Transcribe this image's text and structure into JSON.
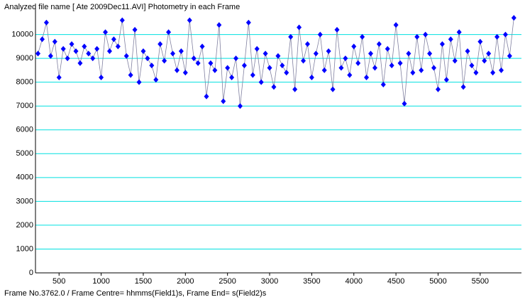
{
  "header": {
    "title": "Analyzed file name [ Ate 2009Dec11.AVI]   Photometry in each Frame"
  },
  "chart_data": {
    "type": "scatter-line",
    "x": [
      250,
      300,
      350,
      400,
      450,
      500,
      550,
      600,
      650,
      700,
      750,
      800,
      850,
      900,
      950,
      1000,
      1050,
      1100,
      1150,
      1200,
      1250,
      1300,
      1350,
      1400,
      1450,
      1500,
      1550,
      1600,
      1650,
      1700,
      1750,
      1800,
      1850,
      1900,
      1950,
      2000,
      2050,
      2100,
      2150,
      2200,
      2250,
      2300,
      2350,
      2400,
      2450,
      2500,
      2550,
      2600,
      2650,
      2700,
      2750,
      2800,
      2850,
      2900,
      2950,
      3000,
      3050,
      3100,
      3150,
      3200,
      3250,
      3300,
      3350,
      3400,
      3450,
      3500,
      3550,
      3600,
      3650,
      3700,
      3750,
      3800,
      3850,
      3900,
      3950,
      4000,
      4050,
      4100,
      4150,
      4200,
      4250,
      4300,
      4350,
      4400,
      4450,
      4500,
      4550,
      4600,
      4650,
      4700,
      4750,
      4800,
      4850,
      4900,
      4950,
      5000,
      5050,
      5100,
      5150,
      5200,
      5250,
      5300,
      5350,
      5400,
      5450,
      5500,
      5550,
      5600,
      5650,
      5700,
      5750,
      5800,
      5850,
      5900
    ],
    "series": [
      {
        "color": "#0000ff",
        "values": [
          9200,
          9800,
          10500,
          9100,
          9700,
          8200,
          9400,
          9000,
          9600,
          9300,
          8800,
          9500,
          9200,
          9000,
          9400,
          8200,
          10100,
          9300,
          9800,
          9500,
          10600,
          9100,
          8300,
          10200,
          8000,
          9300,
          9000,
          8700,
          8100,
          9600,
          8900,
          10100,
          9200,
          8500,
          9300,
          8400,
          10600,
          9000,
          8800,
          9500,
          7400,
          8800,
          8500,
          10400,
          7200,
          8600,
          8200,
          9000,
          7000,
          8700,
          10500,
          8300,
          9400,
          8000,
          9200,
          8600,
          7800,
          9100,
          8700,
          8400,
          9900,
          7700,
          10300,
          8900,
          9600,
          8200,
          9200,
          10000,
          8500,
          9300,
          7700,
          10200,
          8600,
          9000,
          8300,
          9500,
          8800,
          9900,
          8200,
          9200,
          8600,
          9600,
          7900,
          9400,
          8700,
          10400,
          8800,
          7100,
          9200,
          8400,
          9900,
          8500,
          10000,
          9200,
          8600,
          7700,
          9600,
          8100,
          9800,
          8900,
          10100,
          7800,
          9300,
          8700,
          8400,
          9700,
          8900,
          9200,
          8400,
          9900,
          8500,
          10000,
          9100,
          10700
        ]
      }
    ],
    "xlim": [
      220,
      5990
    ],
    "ylim": [
      0,
      11150
    ],
    "xticks": [
      500,
      1000,
      1500,
      2000,
      2500,
      3000,
      3500,
      4000,
      4500,
      5000,
      5500
    ],
    "yticks": [
      0,
      1000,
      2000,
      3000,
      4000,
      5000,
      6000,
      7000,
      8000,
      9000,
      10000
    ],
    "grid": true
  },
  "footer": {
    "status": "Frame No.3762.0 / Frame Centre= hhmms(Field1)s,  Frame End= s(Field2)s"
  }
}
